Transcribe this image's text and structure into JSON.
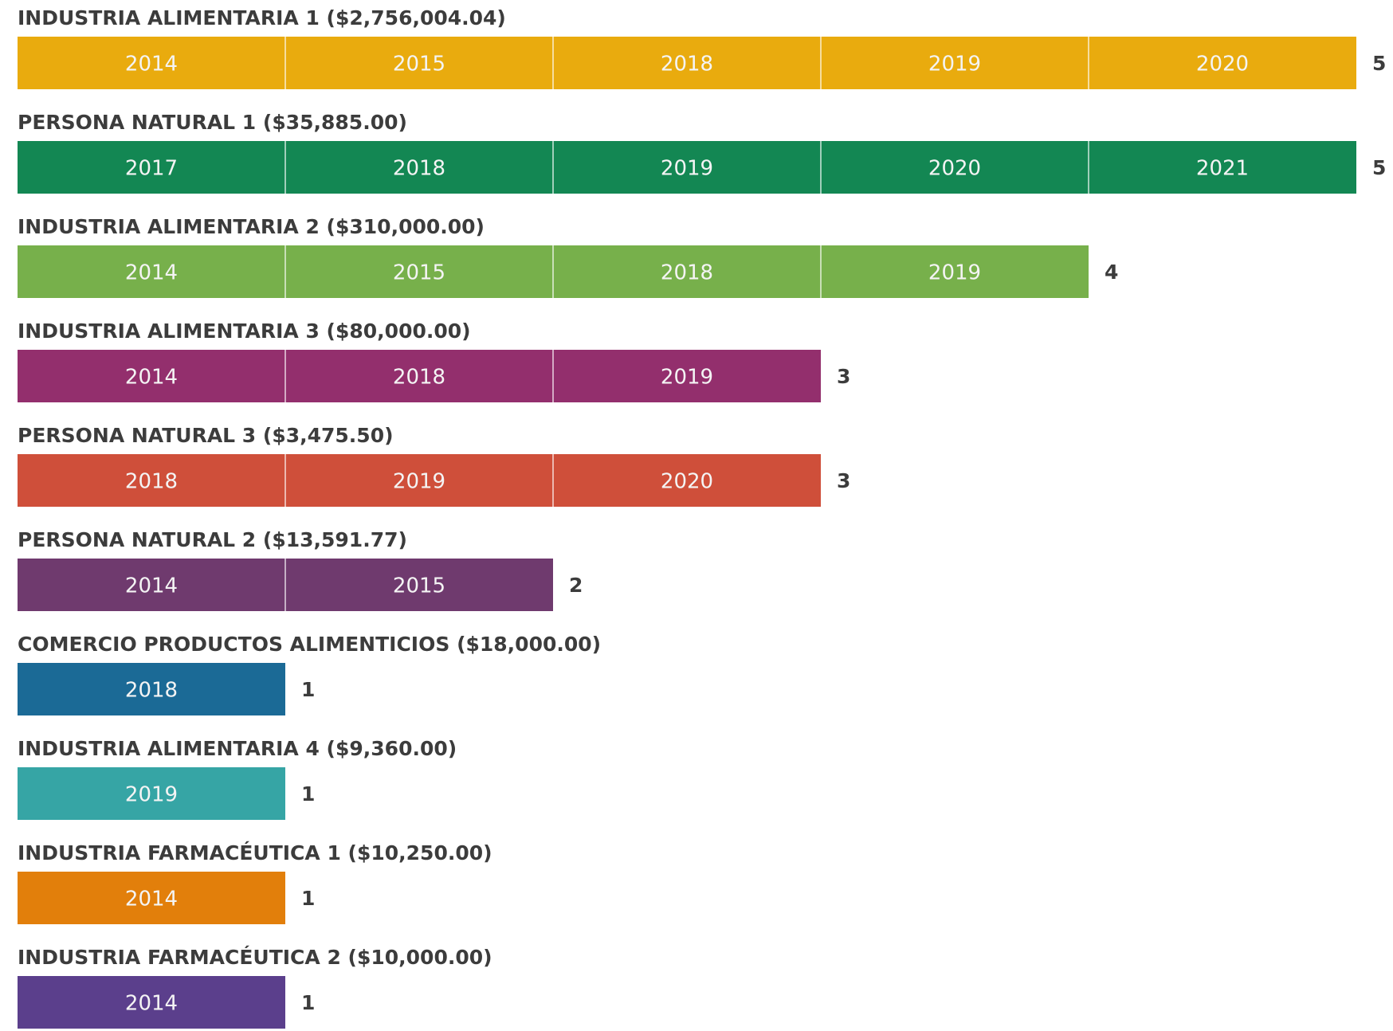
{
  "chart_data": {
    "type": "segmented-bar",
    "rows": [
      {
        "label": "INDUSTRIA ALIMENTARIA 1 ($2,756,004.04)",
        "color": "#e9ab0e",
        "years": [
          "2014",
          "2015",
          "2018",
          "2019",
          "2020"
        ],
        "count": 5
      },
      {
        "label": "PERSONA NATURAL 1 ($35,885.00)",
        "color": "#138753",
        "years": [
          "2017",
          "2018",
          "2019",
          "2020",
          "2021"
        ],
        "count": 5
      },
      {
        "label": "INDUSTRIA ALIMENTARIA 2 ($310,000.00)",
        "color": "#77b04b",
        "years": [
          "2014",
          "2015",
          "2018",
          "2019"
        ],
        "count": 4
      },
      {
        "label": "INDUSTRIA ALIMENTARIA 3 ($80,000.00)",
        "color": "#932f6d",
        "years": [
          "2014",
          "2018",
          "2019"
        ],
        "count": 3
      },
      {
        "label": "PERSONA NATURAL 3 ($3,475.50)",
        "color": "#cf4f3a",
        "years": [
          "2018",
          "2019",
          "2020"
        ],
        "count": 3
      },
      {
        "label": "PERSONA NATURAL 2 ($13,591.77)",
        "color": "#6f3a6e",
        "years": [
          "2014",
          "2015"
        ],
        "count": 2
      },
      {
        "label": "COMERCIO PRODUCTOS ALIMENTICIOS ($18,000.00)",
        "color": "#1b6a96",
        "years": [
          "2018"
        ],
        "count": 1
      },
      {
        "label": "INDUSTRIA ALIMENTARIA 4 ($9,360.00)",
        "color": "#36a5a5",
        "years": [
          "2019"
        ],
        "count": 1
      },
      {
        "label": "INDUSTRIA FARMACÉUTICA 1 ($10,250.00)",
        "color": "#e27f0b",
        "years": [
          "2014"
        ],
        "count": 1
      },
      {
        "label": "INDUSTRIA FARMACÉUTICA 2 ($10,000.00)",
        "color": "#5b3f8c",
        "years": [
          "2014"
        ],
        "count": 1
      }
    ]
  }
}
